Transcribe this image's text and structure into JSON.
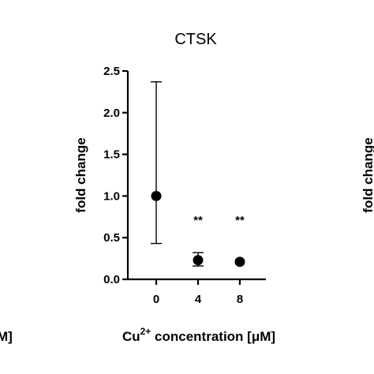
{
  "chart_data": {
    "type": "scatter",
    "title": "CTSK",
    "ylabel": "fold change",
    "xlabel_parts": {
      "base": "Cu",
      "superscript": "2+",
      "rest": " concentration [μM]"
    },
    "categories": [
      "0",
      "4",
      "8"
    ],
    "ylim": [
      0,
      2.5
    ],
    "yticks": [
      "0.0",
      "0.5",
      "1.0",
      "1.5",
      "2.0",
      "2.5"
    ],
    "series": [
      {
        "values": [
          1.0,
          0.23,
          0.21
        ],
        "err_low": [
          0.43,
          0.16,
          null
        ],
        "err_high": [
          2.37,
          0.32,
          null
        ],
        "significance": [
          "",
          "**",
          "**"
        ]
      }
    ],
    "grid": false,
    "legend": "none"
  },
  "neighbors": {
    "left_fragment": "M]",
    "right_fragment": "fold change"
  }
}
